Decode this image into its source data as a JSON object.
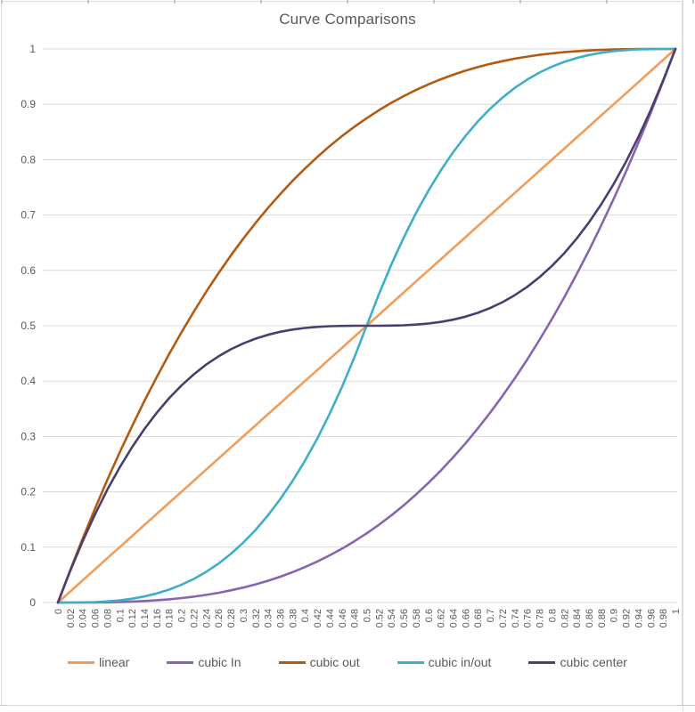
{
  "frame": {
    "border_color": "#DCDCDC",
    "tick_color": "#C6C4C4"
  },
  "chart_data": {
    "type": "line",
    "title": "Curve Comparisons",
    "xlabel": "",
    "ylabel": "",
    "xlim": [
      0,
      1
    ],
    "ylim": [
      0,
      1
    ],
    "grid": "horizontal",
    "gridline_color": "#D9D9D9",
    "text_color": "#595959",
    "legend_position": "bottom",
    "x": [
      0,
      0.02,
      0.04,
      0.06,
      0.08,
      0.1,
      0.12,
      0.14,
      0.16,
      0.18,
      0.2,
      0.22,
      0.24,
      0.26,
      0.28,
      0.3,
      0.32,
      0.34,
      0.36,
      0.38,
      0.4,
      0.42,
      0.44,
      0.46,
      0.48,
      0.5,
      0.52,
      0.54,
      0.56,
      0.58,
      0.6,
      0.62,
      0.64,
      0.66,
      0.68,
      0.7,
      0.72,
      0.74,
      0.76,
      0.78,
      0.8,
      0.82,
      0.84,
      0.86,
      0.88,
      0.9,
      0.92,
      0.94,
      0.96,
      0.98,
      1
    ],
    "x_tick_labels": [
      "0",
      "0.02",
      "0.04",
      "0.06",
      "0.08",
      "0.1",
      "0.12",
      "0.14",
      "0.16",
      "0.18",
      "0.2",
      "0.22",
      "0.24",
      "0.26",
      "0.28",
      "0.3",
      "0.32",
      "0.34",
      "0.36",
      "0.38",
      "0.4",
      "0.42",
      "0.44",
      "0.46",
      "0.48",
      "0.5",
      "0.52",
      "0.54",
      "0.56",
      "0.58",
      "0.6",
      "0.62",
      "0.64",
      "0.66",
      "0.68",
      "0.7",
      "0.72",
      "0.74",
      "0.76",
      "0.78",
      "0.8",
      "0.82",
      "0.84",
      "0.86",
      "0.88",
      "0.9",
      "0.92",
      "0.94",
      "0.96",
      "0.98",
      "1"
    ],
    "y_ticks": [
      0,
      0.1,
      0.2,
      0.3,
      0.4,
      0.5,
      0.6,
      0.7,
      0.8,
      0.9,
      1
    ],
    "y_tick_labels": [
      "0",
      "0.1",
      "0.2",
      "0.3",
      "0.4",
      "0.5",
      "0.6",
      "0.7",
      "0.8",
      "0.9",
      "1"
    ],
    "series": [
      {
        "name": "linear",
        "color": "#F19C58",
        "values": [
          0,
          0.02,
          0.04,
          0.06,
          0.08,
          0.1,
          0.12,
          0.14,
          0.16,
          0.18,
          0.2,
          0.22,
          0.24,
          0.26,
          0.28,
          0.3,
          0.32,
          0.34,
          0.36,
          0.38,
          0.4,
          0.42,
          0.44,
          0.46,
          0.48,
          0.5,
          0.52,
          0.54,
          0.56,
          0.58,
          0.6,
          0.62,
          0.64,
          0.66,
          0.68,
          0.7,
          0.72,
          0.74,
          0.76,
          0.78,
          0.8,
          0.82,
          0.84,
          0.86,
          0.88,
          0.9,
          0.92,
          0.94,
          0.96,
          0.98,
          1
        ]
      },
      {
        "name": "cubic In",
        "color": "#8765AE",
        "values": [
          0,
          1e-05,
          6e-05,
          0.00022,
          0.00051,
          0.001,
          0.00173,
          0.00274,
          0.0041,
          0.00583,
          0.008,
          0.01065,
          0.01382,
          0.01758,
          0.02195,
          0.027,
          0.03277,
          0.0393,
          0.04666,
          0.05487,
          0.064,
          0.07409,
          0.08518,
          0.09734,
          0.11059,
          0.125,
          0.14061,
          0.15746,
          0.17562,
          0.19511,
          0.216,
          0.23833,
          0.26214,
          0.2875,
          0.31443,
          0.343,
          0.37325,
          0.40522,
          0.43898,
          0.47455,
          0.512,
          0.55137,
          0.5927,
          0.63606,
          0.68147,
          0.729,
          0.77869,
          0.83058,
          0.88474,
          0.94119,
          1
        ]
      },
      {
        "name": "cubic out",
        "color": "#B35A12",
        "values": [
          0,
          0.05881,
          0.11526,
          0.16946,
          0.22147,
          0.271,
          0.31853,
          0.36394,
          0.4073,
          0.44863,
          0.488,
          0.52545,
          0.56102,
          0.59478,
          0.62675,
          0.657,
          0.68557,
          0.7125,
          0.73786,
          0.76167,
          0.784,
          0.80489,
          0.82438,
          0.84254,
          0.85939,
          0.875,
          0.88941,
          0.90266,
          0.91482,
          0.92591,
          0.936,
          0.94513,
          0.95334,
          0.9607,
          0.96723,
          0.973,
          0.97805,
          0.98242,
          0.98618,
          0.98935,
          0.992,
          0.99417,
          0.9959,
          0.99726,
          0.99827,
          0.999,
          0.99949,
          0.99978,
          0.99994,
          0.99999,
          1
        ]
      },
      {
        "name": "cubic in/out",
        "color": "#3FAEC9",
        "values": [
          0,
          3e-05,
          0.00026,
          0.00086,
          0.00205,
          0.004,
          0.00691,
          0.01098,
          0.01638,
          0.02333,
          0.032,
          0.04259,
          0.0553,
          0.0703,
          0.08781,
          0.108,
          0.13107,
          0.15722,
          0.18662,
          0.21949,
          0.256,
          0.29635,
          0.34074,
          0.38934,
          0.44237,
          0.5,
          0.55763,
          0.61066,
          0.65926,
          0.70365,
          0.744,
          0.78051,
          0.81338,
          0.84278,
          0.86893,
          0.892,
          0.91219,
          0.9297,
          0.9447,
          0.95741,
          0.968,
          0.97667,
          0.98362,
          0.98902,
          0.99309,
          0.996,
          0.99795,
          0.99914,
          0.99974,
          0.99997,
          1
        ]
      },
      {
        "name": "cubic center",
        "color": "#4C3D6E",
        "values": [
          0,
          0.05763,
          0.11066,
          0.15926,
          0.20365,
          0.244,
          0.28051,
          0.31338,
          0.34278,
          0.36893,
          0.392,
          0.41219,
          0.4297,
          0.4447,
          0.45741,
          0.468,
          0.47667,
          0.48362,
          0.48902,
          0.49309,
          0.496,
          0.49795,
          0.49914,
          0.49974,
          0.49997,
          0.5,
          0.50003,
          0.50026,
          0.50086,
          0.50205,
          0.504,
          0.50691,
          0.51098,
          0.51638,
          0.52333,
          0.532,
          0.54259,
          0.5553,
          0.5703,
          0.58781,
          0.608,
          0.63107,
          0.65722,
          0.68662,
          0.71949,
          0.756,
          0.79635,
          0.84074,
          0.88934,
          0.94237,
          1
        ]
      }
    ]
  }
}
